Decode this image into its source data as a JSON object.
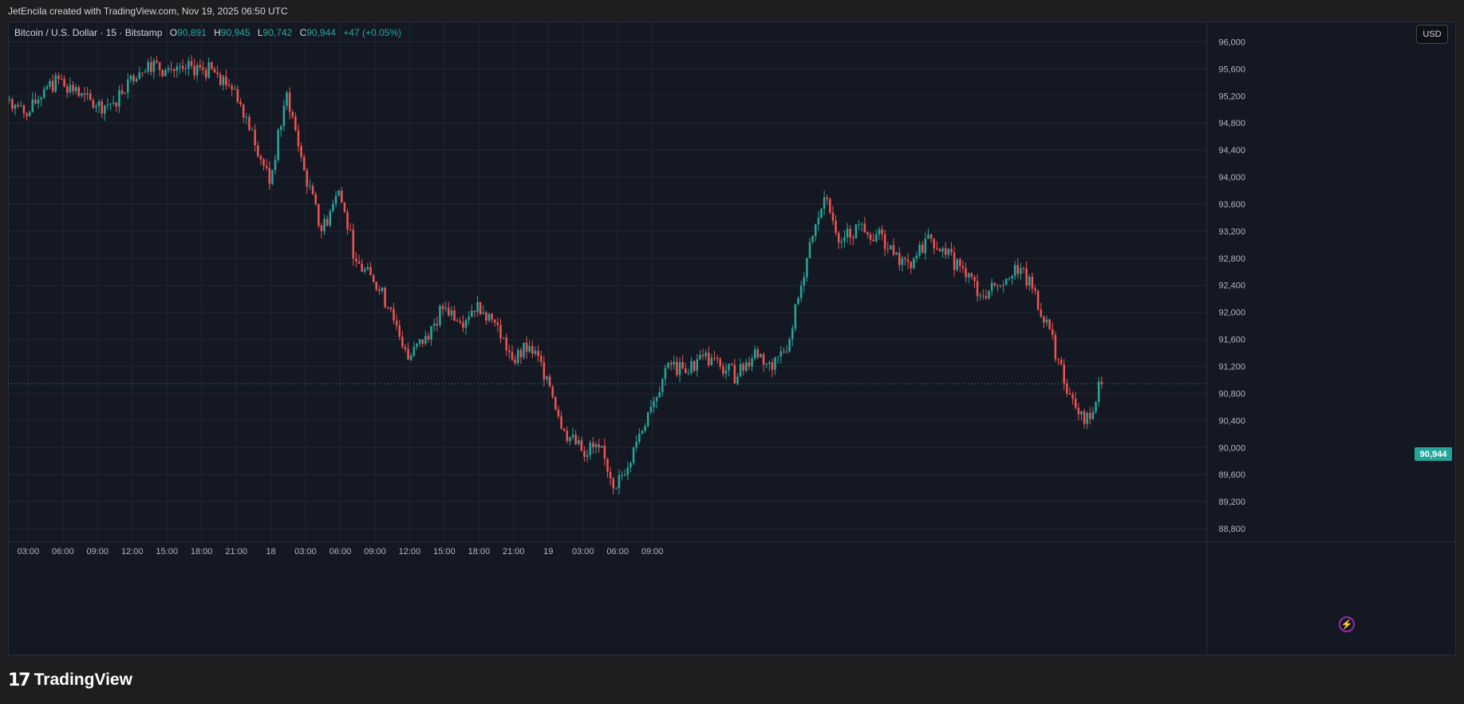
{
  "header": {
    "credit": "JetEncila created with TradingView.com, Nov 19, 2025 06:50 UTC"
  },
  "legend": {
    "symbol": "Bitcoin / U.S. Dollar · 15 · Bitstamp",
    "o_label": "O",
    "o_value": "90,891",
    "h_label": "H",
    "h_value": "90,945",
    "l_label": "L",
    "l_value": "90,742",
    "c_label": "C",
    "c_value": "90,944",
    "change": "+47 (+0.05%)"
  },
  "currency_button": "USD",
  "last_price_tag": "90,944",
  "brand": {
    "logo_mark": "17",
    "name": "TradingView"
  },
  "colors": {
    "up": "#26a69a",
    "down": "#ef5350",
    "background": "#141823",
    "grid": "#222733",
    "text": "#d1d4dc"
  },
  "icons": {
    "bolt": "lightning-bolt-icon"
  },
  "chart_data": {
    "type": "candlestick",
    "interval": "15",
    "ylim": [
      88600,
      96300
    ],
    "y_ticks": [
      88800,
      89200,
      89600,
      90000,
      90400,
      90800,
      91200,
      91600,
      92000,
      92400,
      92800,
      93200,
      93600,
      94000,
      94400,
      94800,
      95200,
      95600,
      96000
    ],
    "y_tick_labels": [
      "88,800",
      "89,200",
      "89,600",
      "90,000",
      "90,400",
      "90,800",
      "91,200",
      "91,600",
      "92,000",
      "92,400",
      "92,800",
      "93,200",
      "93,600",
      "94,000",
      "94,400",
      "94,800",
      "95,200",
      "95,600",
      "96,000"
    ],
    "x_tick_labels": [
      "03:00",
      "06:00",
      "09:00",
      "12:00",
      "15:00",
      "18:00",
      "21:00",
      "18",
      "03:00",
      "06:00",
      "09:00",
      "12:00",
      "15:00",
      "18:00",
      "21:00",
      "19",
      "03:00",
      "06:00",
      "09:00"
    ],
    "last_price": 90944,
    "close_path": [
      [
        0,
        95150
      ],
      [
        6,
        94900
      ],
      [
        12,
        95300
      ],
      [
        18,
        95450
      ],
      [
        24,
        95200
      ],
      [
        30,
        95050
      ],
      [
        36,
        95100
      ],
      [
        42,
        95500
      ],
      [
        48,
        95700
      ],
      [
        54,
        95580
      ],
      [
        60,
        95600
      ],
      [
        66,
        95620
      ],
      [
        72,
        95520
      ],
      [
        78,
        95300
      ],
      [
        84,
        94700
      ],
      [
        90,
        93900
      ],
      [
        96,
        95250
      ],
      [
        102,
        94100
      ],
      [
        108,
        93200
      ],
      [
        114,
        93800
      ],
      [
        120,
        92750
      ],
      [
        126,
        92450
      ],
      [
        132,
        92050
      ],
      [
        138,
        91300
      ],
      [
        144,
        91650
      ],
      [
        150,
        92050
      ],
      [
        156,
        91850
      ],
      [
        162,
        92150
      ],
      [
        168,
        91850
      ],
      [
        174,
        91300
      ],
      [
        180,
        91500
      ],
      [
        186,
        91050
      ],
      [
        192,
        90250
      ],
      [
        198,
        89950
      ],
      [
        204,
        90000
      ],
      [
        210,
        89400
      ],
      [
        216,
        90000
      ],
      [
        222,
        90600
      ],
      [
        228,
        91250
      ],
      [
        234,
        91100
      ],
      [
        240,
        91350
      ],
      [
        246,
        91200
      ],
      [
        252,
        91050
      ],
      [
        258,
        91450
      ],
      [
        264,
        91150
      ],
      [
        270,
        91600
      ],
      [
        276,
        92800
      ],
      [
        282,
        93700
      ],
      [
        288,
        93050
      ],
      [
        294,
        93300
      ],
      [
        300,
        93150
      ],
      [
        306,
        92850
      ],
      [
        312,
        92650
      ],
      [
        318,
        93150
      ],
      [
        324,
        92850
      ],
      [
        330,
        92650
      ],
      [
        336,
        92250
      ],
      [
        342,
        92400
      ],
      [
        348,
        92700
      ],
      [
        354,
        92350
      ],
      [
        360,
        91750
      ],
      [
        366,
        90800
      ],
      [
        372,
        90350
      ],
      [
        378,
        90944
      ]
    ]
  }
}
